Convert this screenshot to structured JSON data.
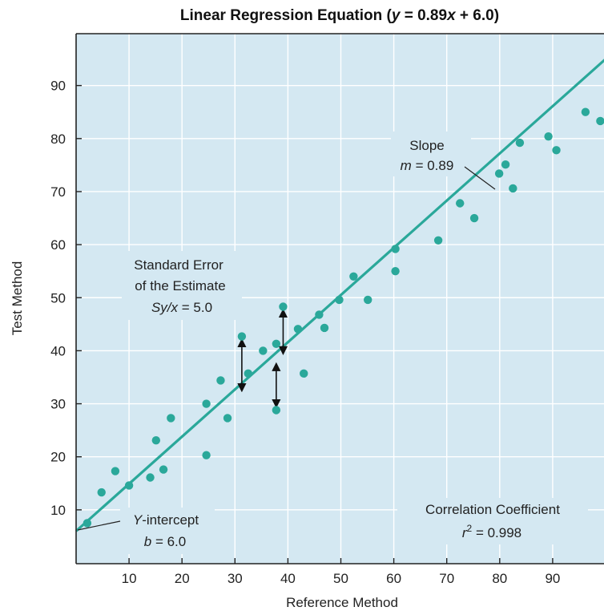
{
  "chart_data": {
    "type": "scatter",
    "title_parts": {
      "before": "Linear Regression Equation (",
      "y_var": "y",
      "eq_mid": " = 0.89",
      "x_var": "x",
      "after": " + 6.0)"
    },
    "xlabel": "Reference Method",
    "ylabel": "Test Method",
    "xlim": [
      0,
      100
    ],
    "ylim": [
      0,
      100
    ],
    "xticks": [
      "10",
      "20",
      "30",
      "40",
      "50",
      "60",
      "70",
      "80",
      "90"
    ],
    "yticks": [
      "10",
      "20",
      "30",
      "40",
      "50",
      "60",
      "70",
      "80",
      "90"
    ],
    "grid": true,
    "colors": {
      "background": "#d4e8f2",
      "points": "#2aa89a",
      "line": "#2aa89a",
      "grid": "#ffffff",
      "frame": "#222222"
    },
    "regression": {
      "slope": 0.89,
      "intercept": 6.0
    },
    "points": [
      {
        "x": 2.1,
        "y": 7.5
      },
      {
        "x": 4.8,
        "y": 13.3
      },
      {
        "x": 7.4,
        "y": 17.3
      },
      {
        "x": 10.0,
        "y": 14.6
      },
      {
        "x": 14.0,
        "y": 16.1
      },
      {
        "x": 15.1,
        "y": 23.1
      },
      {
        "x": 16.5,
        "y": 17.6
      },
      {
        "x": 17.9,
        "y": 27.3
      },
      {
        "x": 24.6,
        "y": 30.0
      },
      {
        "x": 24.6,
        "y": 20.3
      },
      {
        "x": 27.3,
        "y": 34.4
      },
      {
        "x": 28.6,
        "y": 27.3
      },
      {
        "x": 31.3,
        "y": 42.7
      },
      {
        "x": 32.5,
        "y": 35.7
      },
      {
        "x": 35.3,
        "y": 40.0
      },
      {
        "x": 37.8,
        "y": 41.3
      },
      {
        "x": 37.8,
        "y": 28.8
      },
      {
        "x": 39.1,
        "y": 48.3
      },
      {
        "x": 41.9,
        "y": 44.1
      },
      {
        "x": 43.0,
        "y": 35.7
      },
      {
        "x": 45.9,
        "y": 46.8
      },
      {
        "x": 46.9,
        "y": 44.3
      },
      {
        "x": 49.7,
        "y": 49.6
      },
      {
        "x": 52.4,
        "y": 54.0
      },
      {
        "x": 55.1,
        "y": 49.6
      },
      {
        "x": 60.3,
        "y": 59.2
      },
      {
        "x": 60.3,
        "y": 55.0
      },
      {
        "x": 68.4,
        "y": 60.8
      },
      {
        "x": 72.5,
        "y": 67.8
      },
      {
        "x": 75.2,
        "y": 65.0
      },
      {
        "x": 79.9,
        "y": 73.4
      },
      {
        "x": 81.1,
        "y": 75.1
      },
      {
        "x": 82.5,
        "y": 70.6
      },
      {
        "x": 83.8,
        "y": 79.2
      },
      {
        "x": 89.2,
        "y": 80.4
      },
      {
        "x": 90.7,
        "y": 77.8
      },
      {
        "x": 96.2,
        "y": 85.0
      },
      {
        "x": 99.0,
        "y": 83.3
      }
    ],
    "error_arrows": [
      {
        "x": 31.3,
        "y_from": 42.7,
        "y_to": 31.8
      },
      {
        "x": 39.1,
        "y_from": 48.3,
        "y_to": 38.8
      },
      {
        "x": 37.8,
        "y_from": 38.2,
        "y_to": 28.8
      }
    ],
    "annotations": {
      "slope_title": "Slope",
      "slope_var": "m",
      "slope_value": " = 0.89",
      "se_line1": "Standard Error",
      "se_line2": "of the Estimate",
      "se_var": "Sy/x",
      "se_value": " = 5.0",
      "intercept_var": "Y",
      "intercept_rest": "-intercept",
      "b_var": "b",
      "b_value": " = 6.0",
      "cc_title": "Correlation Coefficient",
      "r_var": "r",
      "r_sup": "2",
      "r_value": " = 0.998"
    }
  }
}
